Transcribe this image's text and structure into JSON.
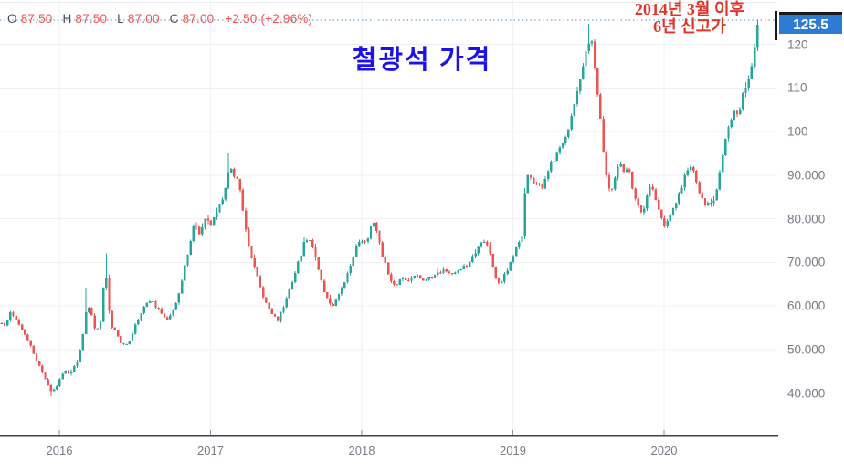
{
  "ohlc_header": {
    "open_label": "O",
    "open": "87.50",
    "high_label": "H",
    "high": "87.50",
    "low_label": "L",
    "low": "87.00",
    "close_label": "C",
    "close": "87.00",
    "change": "+2.50 (+2.96%)",
    "value_color": "#ef5350"
  },
  "title": {
    "text": "철광석 가격",
    "color": "#1d12e8"
  },
  "annotation": {
    "line1": "2014년 3월 이후",
    "line2": "6년 신고가",
    "color": "#e1352a"
  },
  "chart_data": {
    "type": "candlestick",
    "title": "철광석 가격",
    "interval": "weekly",
    "x_range": [
      2015.6,
      2020.77
    ],
    "y_range": [
      35,
      130
    ],
    "grid": true,
    "legend_position": "none",
    "colors": {
      "up": "#26a69a",
      "down": "#ef5350",
      "grid": "#f0f1f5",
      "axis_text": "#787b86",
      "axis_line": "#3e4249",
      "last_price_line": "#3179d2",
      "last_price_bg": "#2e7bd3"
    },
    "y_ticks": [
      {
        "label": "120",
        "value": 120
      },
      {
        "label": "110",
        "value": 110
      },
      {
        "label": "100",
        "value": 100
      },
      {
        "label": "90.000",
        "value": 90
      },
      {
        "label": "80.000",
        "value": 80
      },
      {
        "label": "70.000",
        "value": 70
      },
      {
        "label": "60.000",
        "value": 60
      },
      {
        "label": "50.000",
        "value": 50
      },
      {
        "label": "40.000",
        "value": 40
      }
    ],
    "x_ticks": [
      {
        "label": "2016",
        "value": 2016
      },
      {
        "label": "2017",
        "value": 2017
      },
      {
        "label": "2018",
        "value": 2018
      },
      {
        "label": "2019",
        "value": 2019
      },
      {
        "label": "2020",
        "value": 2020
      }
    ],
    "last_price": 125.5,
    "last_price_label": "125.5",
    "close_anchors": [
      [
        2015.618,
        56
      ],
      [
        2015.642,
        55
      ],
      [
        2015.679,
        59
      ],
      [
        2015.709,
        57
      ],
      [
        2015.739,
        55.5
      ],
      [
        2015.776,
        53
      ],
      [
        2015.812,
        50.5
      ],
      [
        2015.848,
        47.5
      ],
      [
        2015.885,
        45
      ],
      [
        2015.915,
        42.5
      ],
      [
        2015.945,
        40.5
      ],
      [
        2015.976,
        41
      ],
      [
        2016.006,
        43.5
      ],
      [
        2016.036,
        45.5
      ],
      [
        2016.067,
        44
      ],
      [
        2016.097,
        46
      ],
      [
        2016.121,
        47.5
      ],
      [
        2016.152,
        52
      ],
      [
        2016.182,
        60
      ],
      [
        2016.206,
        59
      ],
      [
        2016.23,
        55
      ],
      [
        2016.255,
        54.5
      ],
      [
        2016.279,
        57
      ],
      [
        2016.303,
        71
      ],
      [
        2016.321,
        60.5
      ],
      [
        2016.345,
        55.5
      ],
      [
        2016.376,
        54
      ],
      [
        2016.406,
        51.5
      ],
      [
        2016.436,
        50.5
      ],
      [
        2016.467,
        52.5
      ],
      [
        2016.497,
        55
      ],
      [
        2016.527,
        57.5
      ],
      [
        2016.558,
        59.5
      ],
      [
        2016.594,
        61.5
      ],
      [
        2016.636,
        60
      ],
      [
        2016.673,
        58
      ],
      [
        2016.709,
        57
      ],
      [
        2016.745,
        58.5
      ],
      [
        2016.794,
        63
      ],
      [
        2016.836,
        70
      ],
      [
        2016.891,
        79
      ],
      [
        2016.927,
        76.5
      ],
      [
        2016.97,
        80
      ],
      [
        2017,
        78.5
      ],
      [
        2017.048,
        82
      ],
      [
        2017.091,
        86
      ],
      [
        2017.127,
        92
      ],
      [
        2017.158,
        90
      ],
      [
        2017.188,
        88.5
      ],
      [
        2017.224,
        80
      ],
      [
        2017.261,
        72
      ],
      [
        2017.303,
        67.5
      ],
      [
        2017.352,
        62
      ],
      [
        2017.4,
        58.5
      ],
      [
        2017.442,
        56.5
      ],
      [
        2017.485,
        60
      ],
      [
        2017.533,
        65
      ],
      [
        2017.582,
        70
      ],
      [
        2017.624,
        75
      ],
      [
        2017.661,
        75.5
      ],
      [
        2017.703,
        70
      ],
      [
        2017.752,
        63.5
      ],
      [
        2017.806,
        59.5
      ],
      [
        2017.855,
        63.5
      ],
      [
        2017.903,
        67
      ],
      [
        2017.958,
        73
      ],
      [
        2017.994,
        75.5
      ],
      [
        2018.03,
        74
      ],
      [
        2018.067,
        79.5
      ],
      [
        2018.103,
        77
      ],
      [
        2018.139,
        71.5
      ],
      [
        2018.182,
        67
      ],
      [
        2018.218,
        64.5
      ],
      [
        2018.261,
        66.5
      ],
      [
        2018.309,
        65.5
      ],
      [
        2018.358,
        67.5
      ],
      [
        2018.406,
        66
      ],
      [
        2018.455,
        66.5
      ],
      [
        2018.503,
        67.5
      ],
      [
        2018.552,
        68.5
      ],
      [
        2018.6,
        67
      ],
      [
        2018.648,
        68.5
      ],
      [
        2018.697,
        69.5
      ],
      [
        2018.745,
        72
      ],
      [
        2018.794,
        75
      ],
      [
        2018.836,
        73.5
      ],
      [
        2018.879,
        67
      ],
      [
        2018.909,
        65
      ],
      [
        2018.945,
        67
      ],
      [
        2018.976,
        69
      ],
      [
        2019.006,
        72
      ],
      [
        2019.036,
        74
      ],
      [
        2019.061,
        76.5
      ],
      [
        2019.079,
        86
      ],
      [
        2019.103,
        91
      ],
      [
        2019.127,
        88.3
      ],
      [
        2019.152,
        87
      ],
      [
        2019.176,
        88.5
      ],
      [
        2019.2,
        86.5
      ],
      [
        2019.224,
        90
      ],
      [
        2019.255,
        93
      ],
      [
        2019.291,
        94.5
      ],
      [
        2019.327,
        97
      ],
      [
        2019.364,
        100.5
      ],
      [
        2019.4,
        105
      ],
      [
        2019.436,
        111
      ],
      [
        2019.467,
        116
      ],
      [
        2019.497,
        119.5
      ],
      [
        2019.521,
        121
      ],
      [
        2019.545,
        114
      ],
      [
        2019.57,
        106
      ],
      [
        2019.594,
        97
      ],
      [
        2019.618,
        90
      ],
      [
        2019.642,
        85.5
      ],
      [
        2019.673,
        89
      ],
      [
        2019.703,
        93
      ],
      [
        2019.733,
        90.5
      ],
      [
        2019.764,
        91.5
      ],
      [
        2019.794,
        87
      ],
      [
        2019.824,
        83
      ],
      [
        2019.855,
        80.5
      ],
      [
        2019.885,
        85
      ],
      [
        2019.915,
        87.5
      ],
      [
        2019.945,
        84.5
      ],
      [
        2019.976,
        81
      ],
      [
        2020.006,
        77.5
      ],
      [
        2020.036,
        80.5
      ],
      [
        2020.073,
        83
      ],
      [
        2020.109,
        86.5
      ],
      [
        2020.145,
        90.5
      ],
      [
        2020.182,
        92.5
      ],
      [
        2020.212,
        89
      ],
      [
        2020.242,
        85
      ],
      [
        2020.273,
        83
      ],
      [
        2020.297,
        84.5
      ],
      [
        2020.321,
        82.5
      ],
      [
        2020.345,
        86
      ],
      [
        2020.37,
        91
      ],
      [
        2020.394,
        96
      ],
      [
        2020.418,
        99.5
      ],
      [
        2020.442,
        103
      ],
      [
        2020.467,
        105.5
      ],
      [
        2020.491,
        103.5
      ],
      [
        2020.515,
        107.5
      ],
      [
        2020.539,
        110
      ],
      [
        2020.564,
        113
      ],
      [
        2020.588,
        117
      ],
      [
        2020.612,
        120.5
      ],
      [
        2020.636,
        124.5
      ]
    ],
    "wick_events": [
      {
        "t": 2015.945,
        "low": 39.3
      },
      {
        "t": 2016.182,
        "high": 64
      },
      {
        "t": 2016.303,
        "high": 72
      },
      {
        "t": 2017.127,
        "high": 95
      },
      {
        "t": 2019.497,
        "high": 124.7
      },
      {
        "t": 2020.636,
        "high": 125.5
      }
    ]
  }
}
